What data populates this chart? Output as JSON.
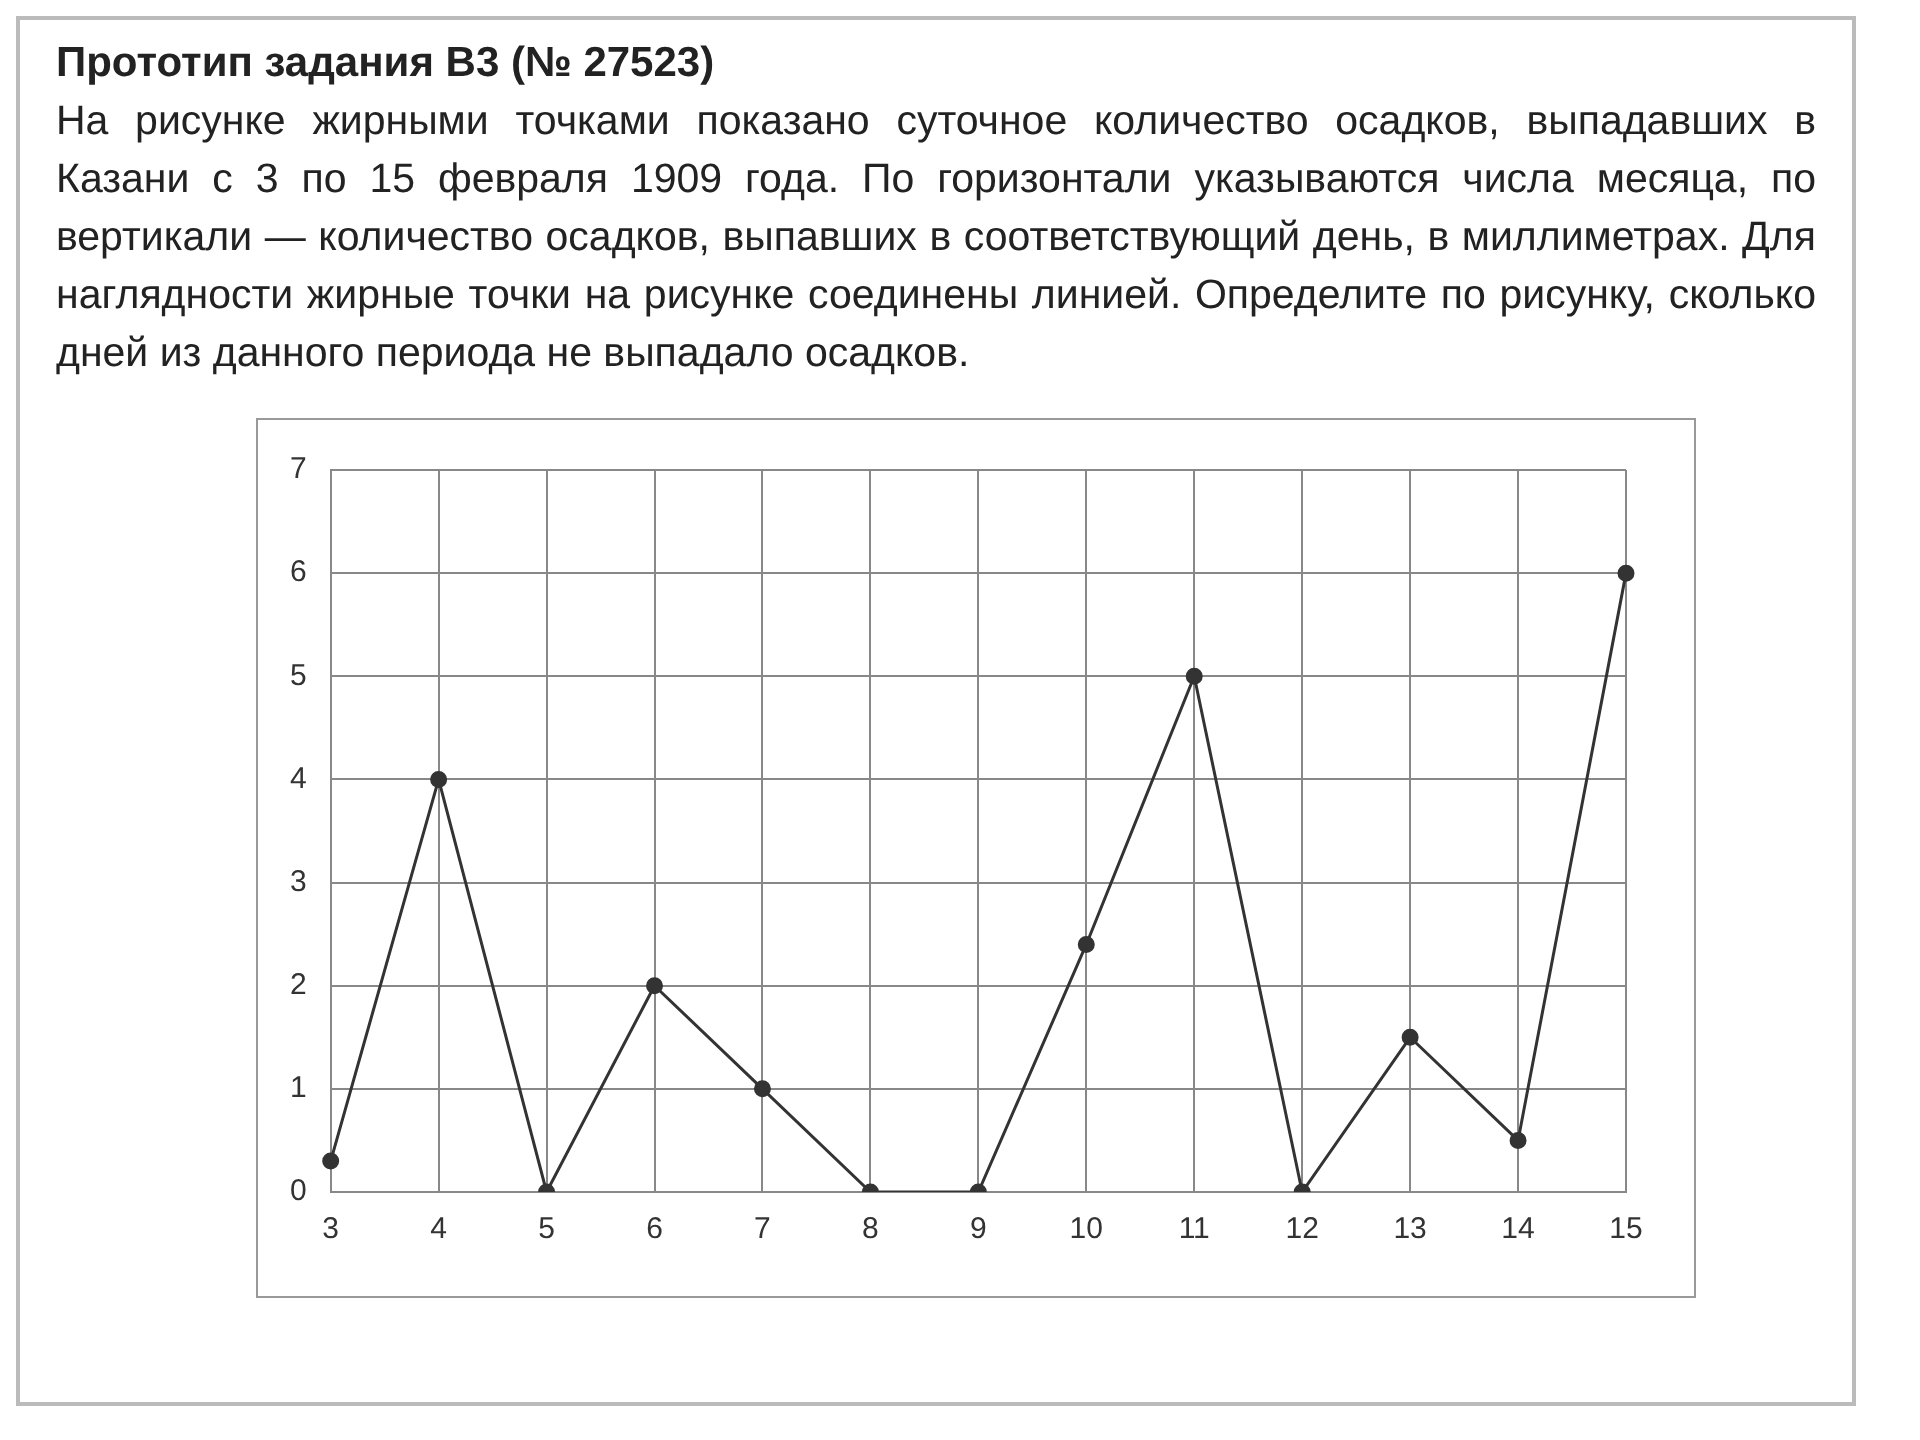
{
  "chart_data": {
    "type": "line",
    "title": "Прототип задания B3 (№ 27523)",
    "subtitle": "На рисунке жирными точками показано суточное количество осадков, выпадавших в Казани с 3 по 15 февраля 1909 года. По горизонтали указываются числа месяца, по вертикали — количество осадков, выпавших в соответствующий день, в миллиметрах. Для наглядности жирные точки на рисунке соединены линией. Определите по рисунку, сколько дней из данного периода не выпадало осадков.",
    "categories": [
      "3",
      "4",
      "5",
      "6",
      "7",
      "8",
      "9",
      "10",
      "11",
      "12",
      "13",
      "14",
      "15"
    ],
    "series": [
      {
        "color": "#333333",
        "values": [
          0.3,
          4,
          0,
          2,
          1,
          0,
          0,
          2.4,
          5,
          0,
          1.5,
          0.5,
          6
        ]
      }
    ],
    "ylim": [
      0,
      7
    ],
    "yticks": [
      0,
      1,
      2,
      3,
      4,
      5,
      6,
      7
    ],
    "grid": true,
    "legend": false,
    "marker": "circle",
    "line_style": "solid"
  }
}
